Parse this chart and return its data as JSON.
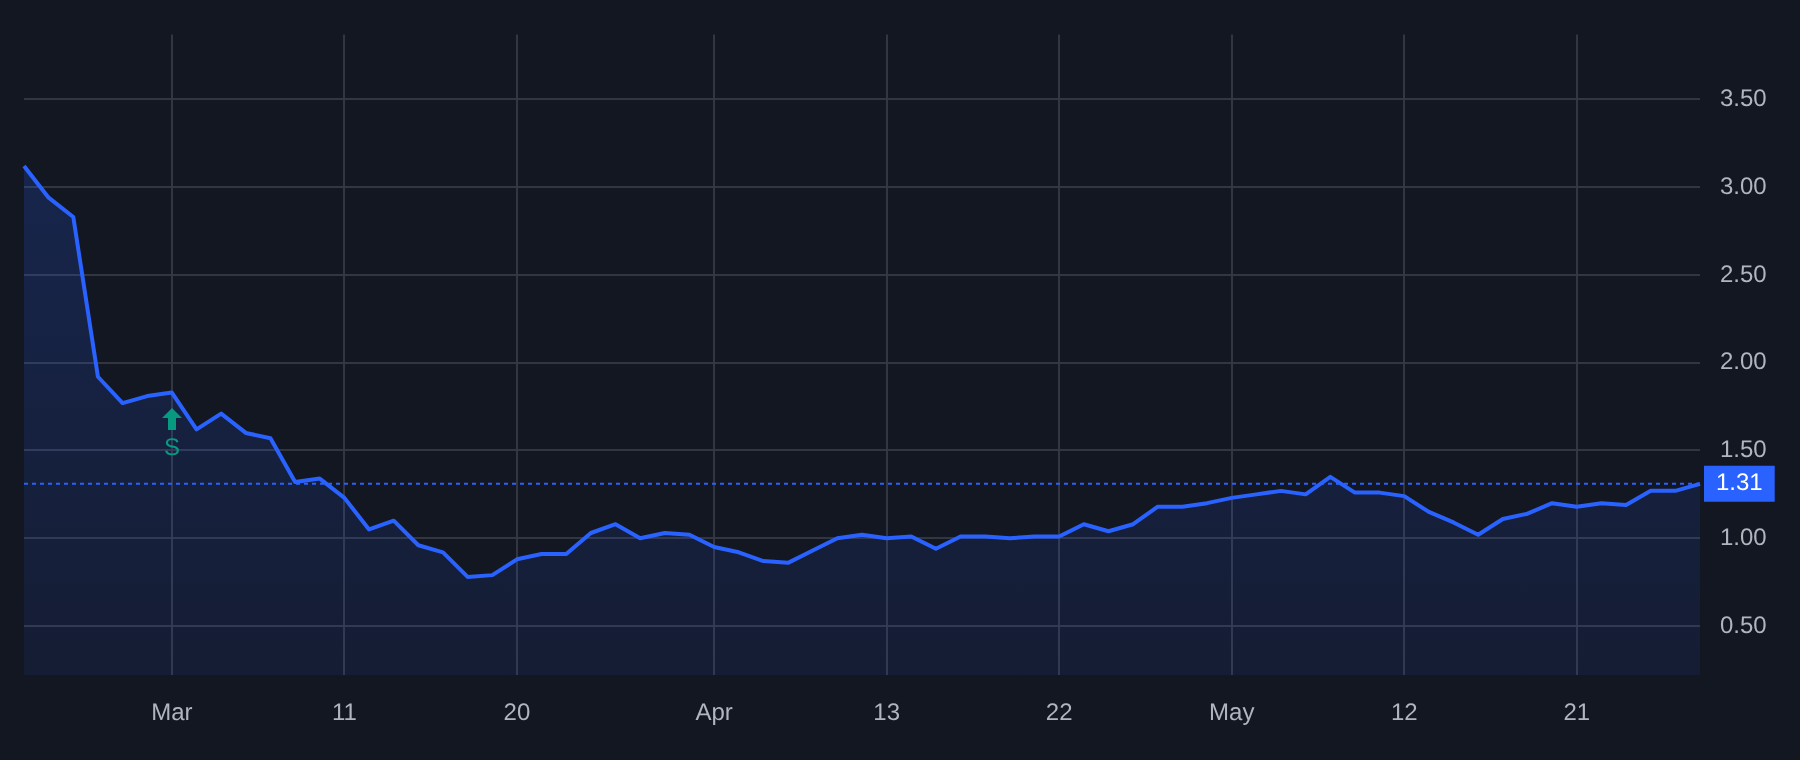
{
  "chart_data": {
    "type": "area",
    "categories": [
      null,
      null,
      null,
      null,
      null,
      null,
      "Mar",
      null,
      null,
      null,
      null,
      null,
      null,
      "11",
      null,
      null,
      null,
      null,
      null,
      null,
      "20",
      null,
      null,
      null,
      null,
      null,
      null,
      null,
      "Apr",
      null,
      null,
      null,
      null,
      null,
      null,
      "13",
      null,
      null,
      null,
      null,
      null,
      null,
      "22",
      null,
      null,
      null,
      null,
      null,
      null,
      "May",
      null,
      null,
      null,
      null,
      null,
      null,
      "12",
      null,
      null,
      null,
      null,
      null,
      null,
      "21",
      null,
      null,
      null,
      null,
      null
    ],
    "series": [
      {
        "color": "#2962ff",
        "values": [
          3.12,
          2.94,
          2.83,
          1.92,
          1.77,
          1.81,
          1.83,
          1.62,
          1.71,
          1.6,
          1.57,
          1.32,
          1.34,
          1.23,
          1.05,
          1.1,
          0.96,
          0.92,
          0.78,
          0.79,
          0.88,
          0.91,
          0.91,
          1.03,
          1.08,
          1.0,
          1.03,
          1.02,
          0.95,
          0.92,
          0.87,
          0.86,
          0.93,
          1.0,
          1.02,
          1.0,
          1.01,
          0.94,
          1.01,
          1.01,
          1.0,
          1.01,
          1.01,
          1.08,
          1.04,
          1.08,
          1.18,
          1.18,
          1.2,
          1.23,
          1.25,
          1.27,
          1.25,
          1.35,
          1.26,
          1.26,
          1.24,
          1.15,
          1.09,
          1.02,
          1.11,
          1.14,
          1.2,
          1.18,
          1.2,
          1.19,
          1.27,
          1.27,
          1.31
        ]
      }
    ],
    "ylim": [
      0.22,
      3.87
    ],
    "yticks": [
      {
        "value": 0.5,
        "label": "0.50"
      },
      {
        "value": 1,
        "label": "1.00"
      },
      {
        "value": 1.5,
        "label": "1.50"
      },
      {
        "value": 2,
        "label": "2.00"
      },
      {
        "value": 2.5,
        "label": "2.50"
      },
      {
        "value": 3,
        "label": "3.00"
      },
      {
        "value": 3.5,
        "label": "3.50"
      }
    ],
    "grid": true,
    "legend": false,
    "marker": "none",
    "line_style": "solid",
    "ref_lines": [
      {
        "axis": "y",
        "value": 1.31,
        "label": "1.31",
        "color": "#2962ff",
        "line_style": "dotted"
      }
    ],
    "annotations": [
      {
        "text": "S",
        "x": "Mar",
        "y": 1.83
      }
    ]
  }
}
